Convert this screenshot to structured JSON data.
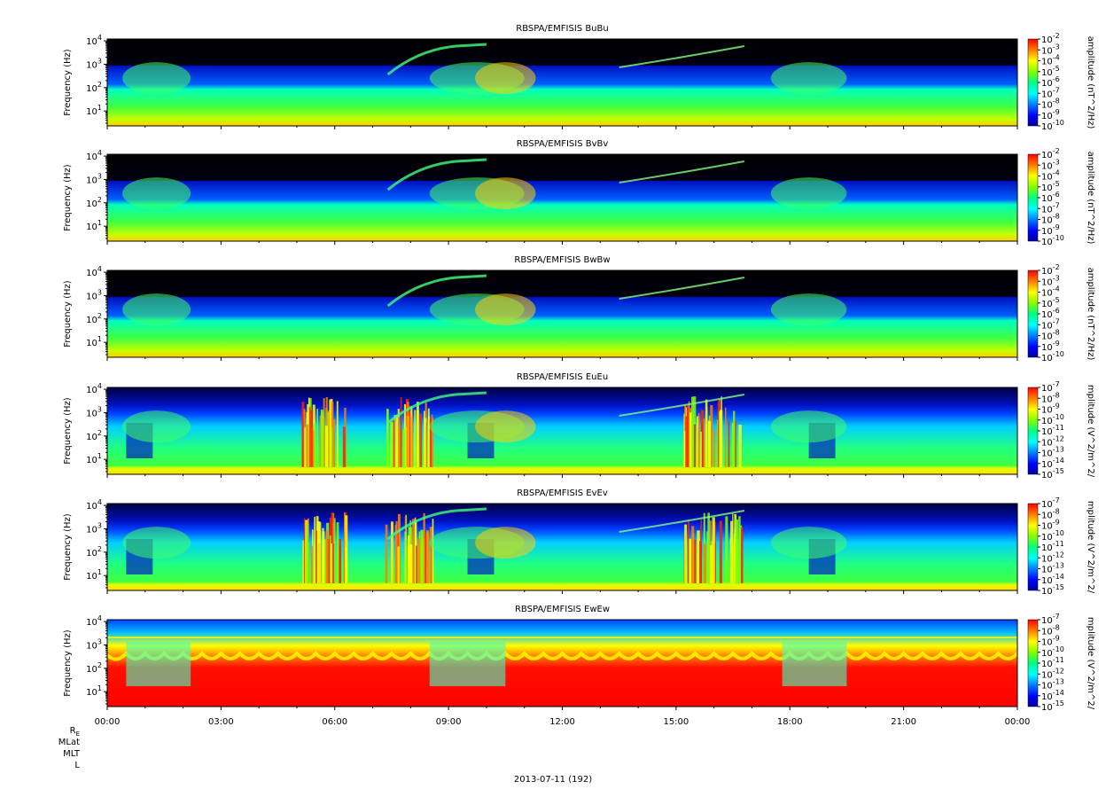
{
  "chart_data": [
    {
      "type": "heatmap",
      "title": "RBSPA/EMFISIS  BuBu",
      "ylabel": "Frequency (Hz)",
      "yscale": "log",
      "ylim": [
        2.3,
        12000
      ],
      "yticks": [
        "10^1",
        "10^2",
        "10^3",
        "10^4"
      ],
      "colorbar": {
        "label": "amplitude (nT^2/Hz)",
        "scale": "log",
        "range": [
          1e-10,
          0.01
        ],
        "ticks": [
          "10^-10",
          "10^-9",
          "10^-8",
          "10^-7",
          "10^-6",
          "10^-5",
          "10^-4",
          "10^-3",
          "10^-2"
        ]
      }
    },
    {
      "type": "heatmap",
      "title": "RBSPA/EMFISIS  BvBv",
      "ylabel": "Frequency (Hz)",
      "yscale": "log",
      "ylim": [
        2.3,
        12000
      ],
      "yticks": [
        "10^1",
        "10^2",
        "10^3",
        "10^4"
      ],
      "colorbar": {
        "label": "amplitude (nT^2/Hz)",
        "scale": "log",
        "range": [
          1e-10,
          0.01
        ],
        "ticks": [
          "10^-10",
          "10^-9",
          "10^-8",
          "10^-7",
          "10^-6",
          "10^-5",
          "10^-4",
          "10^-3",
          "10^-2"
        ]
      }
    },
    {
      "type": "heatmap",
      "title": "RBSPA/EMFISIS  BwBw",
      "ylabel": "Frequency (Hz)",
      "yscale": "log",
      "ylim": [
        2.3,
        12000
      ],
      "yticks": [
        "10^1",
        "10^2",
        "10^3",
        "10^4"
      ],
      "colorbar": {
        "label": "amplitude (nT^2/Hz)",
        "scale": "log",
        "range": [
          1e-10,
          0.01
        ],
        "ticks": [
          "10^-10",
          "10^-9",
          "10^-8",
          "10^-7",
          "10^-6",
          "10^-5",
          "10^-4",
          "10^-3",
          "10^-2"
        ]
      }
    },
    {
      "type": "heatmap",
      "title": "RBSPA/EMFISIS  EuEu",
      "ylabel": "Frequency (Hz)",
      "yscale": "log",
      "ylim": [
        2.3,
        12000
      ],
      "yticks": [
        "10^1",
        "10^2",
        "10^3",
        "10^4"
      ],
      "colorbar": {
        "label": "mplitude (V^2/m^2/",
        "scale": "log",
        "range": [
          1e-15,
          1e-07
        ],
        "ticks": [
          "10^-15",
          "10^-14",
          "10^-13",
          "10^-12",
          "10^-11",
          "10^-10",
          "10^-9",
          "10^-8",
          "10^-7"
        ]
      }
    },
    {
      "type": "heatmap",
      "title": "RBSPA/EMFISIS  EvEv",
      "ylabel": "Frequency (Hz)",
      "yscale": "log",
      "ylim": [
        2.3,
        12000
      ],
      "yticks": [
        "10^1",
        "10^2",
        "10^3",
        "10^4"
      ],
      "colorbar": {
        "label": "mplitude (V^2/m^2/",
        "scale": "log",
        "range": [
          1e-15,
          1e-07
        ],
        "ticks": [
          "10^-15",
          "10^-14",
          "10^-13",
          "10^-12",
          "10^-11",
          "10^-10",
          "10^-9",
          "10^-8",
          "10^-7"
        ]
      }
    },
    {
      "type": "heatmap",
      "title": "RBSPA/EMFISIS  EwEw",
      "ylabel": "Frequency (Hz)",
      "yscale": "log",
      "ylim": [
        2.3,
        12000
      ],
      "yticks": [
        "10^1",
        "10^2",
        "10^3",
        "10^4"
      ],
      "colorbar": {
        "label": "mplitude (V^2/m^2/",
        "scale": "log",
        "range": [
          1e-15,
          1e-07
        ],
        "ticks": [
          "10^-15",
          "10^-14",
          "10^-13",
          "10^-12",
          "10^-11",
          "10^-10",
          "10^-9",
          "10^-8",
          "10^-7"
        ]
      }
    }
  ],
  "x_axis": {
    "ticks": [
      "00:00",
      "03:00",
      "06:00",
      "09:00",
      "12:00",
      "15:00",
      "18:00",
      "21:00",
      "00:00"
    ],
    "range_hours": [
      0,
      24
    ]
  },
  "ephemeris_labels": [
    "R_E",
    "MLat",
    "MLT",
    "L"
  ],
  "date_label": "2013-07-11 (192)",
  "colors": {
    "background_fill": "#000000",
    "colormap": [
      "#0000a0",
      "#0000ff",
      "#0080ff",
      "#00ffff",
      "#00ff80",
      "#80ff00",
      "#ffff00",
      "#ff8000",
      "#ff0000"
    ]
  }
}
